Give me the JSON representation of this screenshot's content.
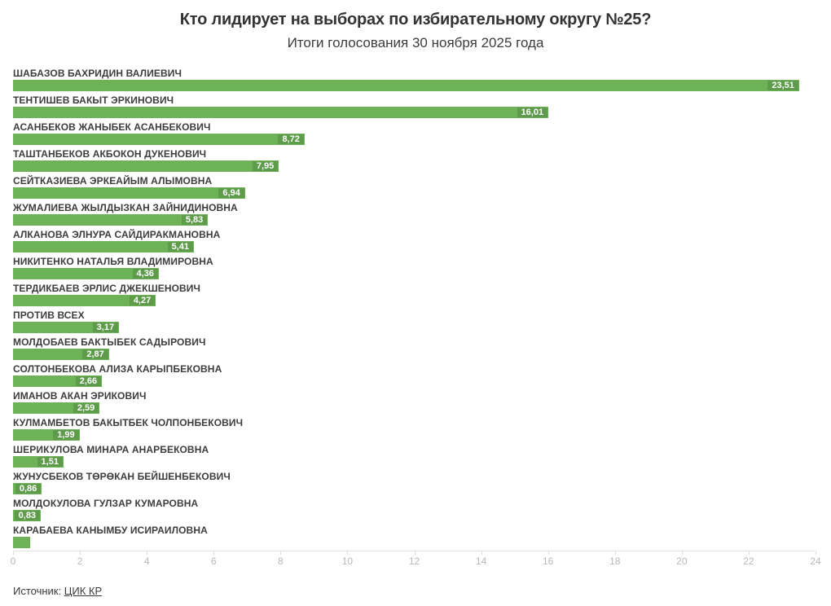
{
  "header": {
    "title": "Кто лидирует на выборах по избирательному округу №25?",
    "subtitle": "Итоги голосования 30 ноября 2025 года"
  },
  "chart_data": {
    "type": "bar",
    "orientation": "horizontal",
    "title": "Кто лидирует на выборах по избирательному округу №25?",
    "subtitle": "Итоги голосования 30 ноября 2025 года",
    "categories": [
      "ШАБАЗОВ БАХРИДИН ВАЛИЕВИЧ",
      "ТЕНТИШЕВ БАКЫТ ЭРКИНОВИЧ",
      "АСАНБЕКОВ ЖАНЫБЕК АСАНБЕКОВИЧ",
      "ТАШТАНБЕКОВ АКБОКОН ДУКЕНОВИЧ",
      "СЕЙТКАЗИЕВА ЭРКЕАЙЫМ АЛЫМОВНА",
      "ЖУМАЛИЕВА ЖЫЛДЫЗКАН ЗАЙНИДИНОВНА",
      "АЛКАНОВА ЭЛНУРА САЙДИРАКМАНОВНА",
      "НИКИТЕНКО НАТАЛЬЯ ВЛАДИМИРОВНА",
      "ТЕРДИКБАЕВ ЭРЛИС ДЖЕКШЕНОВИЧ",
      "ПРОТИВ ВСЕХ",
      "МОЛДОБАЕВ БАКТЫБЕК САДЫРОВИЧ",
      "СОЛТОНБЕКОВА АЛИЗА КАРЫПБЕКОВНА",
      "ИМАНОВ АКАН ЭРИКОВИЧ",
      "КУЛМАМБЕТОВ БАКЫТБЕК ЧОЛПОНБЕКОВИЧ",
      "ШЕРИКУЛОВА МИНАРА АНАРБЕКОВНА",
      "ЖУНУСБЕКОВ ТӨРӨКАН БЕЙШЕНБЕКОВИЧ",
      "МОЛДОКУЛОВА ГУЛЗАР КУМАРОВНА",
      "КАРАБАЕВА КАНЫМБУ ИСИРАИЛОВНА"
    ],
    "values": [
      23.51,
      16.01,
      8.72,
      7.95,
      6.94,
      5.83,
      5.41,
      4.36,
      4.27,
      3.17,
      2.87,
      2.66,
      2.59,
      1.99,
      1.51,
      0.86,
      0.83,
      0.5
    ],
    "value_labels": [
      "23,51",
      "16,01",
      "8,72",
      "7,95",
      "6,94",
      "5,83",
      "5,41",
      "4,36",
      "4,27",
      "3,17",
      "2,87",
      "2,66",
      "2,59",
      "1,99",
      "1,51",
      "0,86",
      "0,83",
      ""
    ],
    "xlabel": "",
    "ylabel": "",
    "xlim": [
      0,
      24
    ],
    "x_ticks": [
      0,
      2,
      4,
      6,
      8,
      10,
      12,
      14,
      16,
      18,
      20,
      22,
      24
    ],
    "grid": false,
    "legend": false,
    "bar_color": "#6db257",
    "value_text_color": "#ffffff",
    "axis_label_color": "#b8b8b8"
  },
  "footer": {
    "source_prefix": "Источник:",
    "source_link_label": "ЦИК КР"
  }
}
